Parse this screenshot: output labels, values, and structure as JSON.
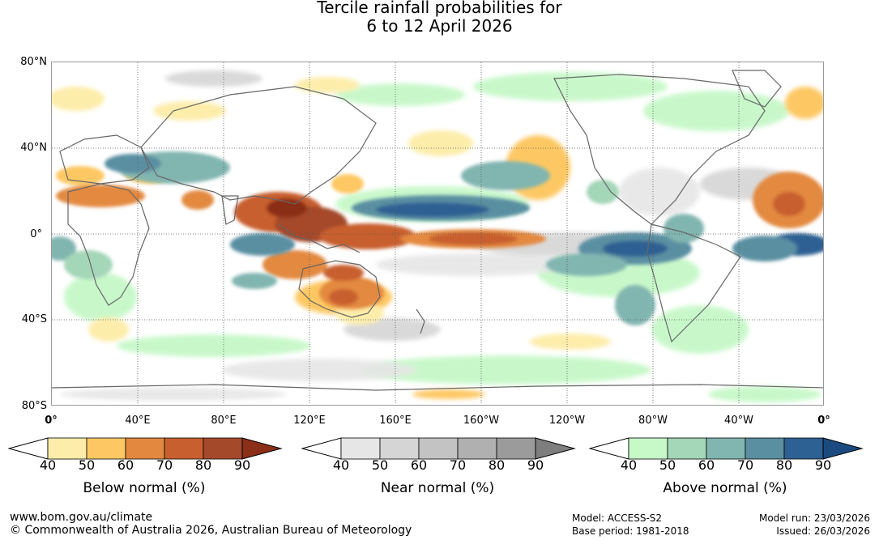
{
  "title": {
    "line1": "Tercile rainfall probabilities for",
    "line2": "6 to 12 April 2026"
  },
  "map": {
    "latitude_labels": [
      "80°N",
      "40°N",
      "0°",
      "40°S",
      "80°S"
    ],
    "longitude_labels": [
      "0°",
      "40°E",
      "80°E",
      "120°E",
      "160°E",
      "160°W",
      "120°W",
      "80°W",
      "40°W",
      "0°"
    ],
    "colors": {
      "below_normal": [
        "#fdedaa",
        "#fdc864",
        "#e3893f",
        "#c85f2f",
        "#a5492b",
        "#8b2f18"
      ],
      "near_normal": [
        "#e6e6e6",
        "#d5d5d5",
        "#c3c3c3",
        "#b0b0b0",
        "#9b9b9b",
        "#7e7e7e"
      ],
      "above_normal": [
        "#c6f8c8",
        "#a4d6b8",
        "#81b5b0",
        "#5a8fa2",
        "#2e6193",
        "#1b4a80"
      ],
      "coastline": "#666666",
      "grid": "#555555"
    }
  },
  "colorbars": [
    {
      "title": "Below normal (%)",
      "ticks": [
        "40",
        "50",
        "60",
        "70",
        "80",
        "90"
      ]
    },
    {
      "title": "Near normal (%)",
      "ticks": [
        "40",
        "50",
        "60",
        "70",
        "80",
        "90"
      ]
    },
    {
      "title": "Above normal (%)",
      "ticks": [
        "40",
        "50",
        "60",
        "70",
        "80",
        "90"
      ]
    }
  ],
  "footer": {
    "website": "www.bom.gov.au/climate",
    "copyright": "© Commonwealth of Australia 2026, Australian Bureau of Meteorology",
    "model": "Model: ACCESS-S2",
    "base_period": "Base period: 1981-2018",
    "model_run": "Model run: 23/03/2026",
    "issued": "Issued: 26/03/2026"
  }
}
